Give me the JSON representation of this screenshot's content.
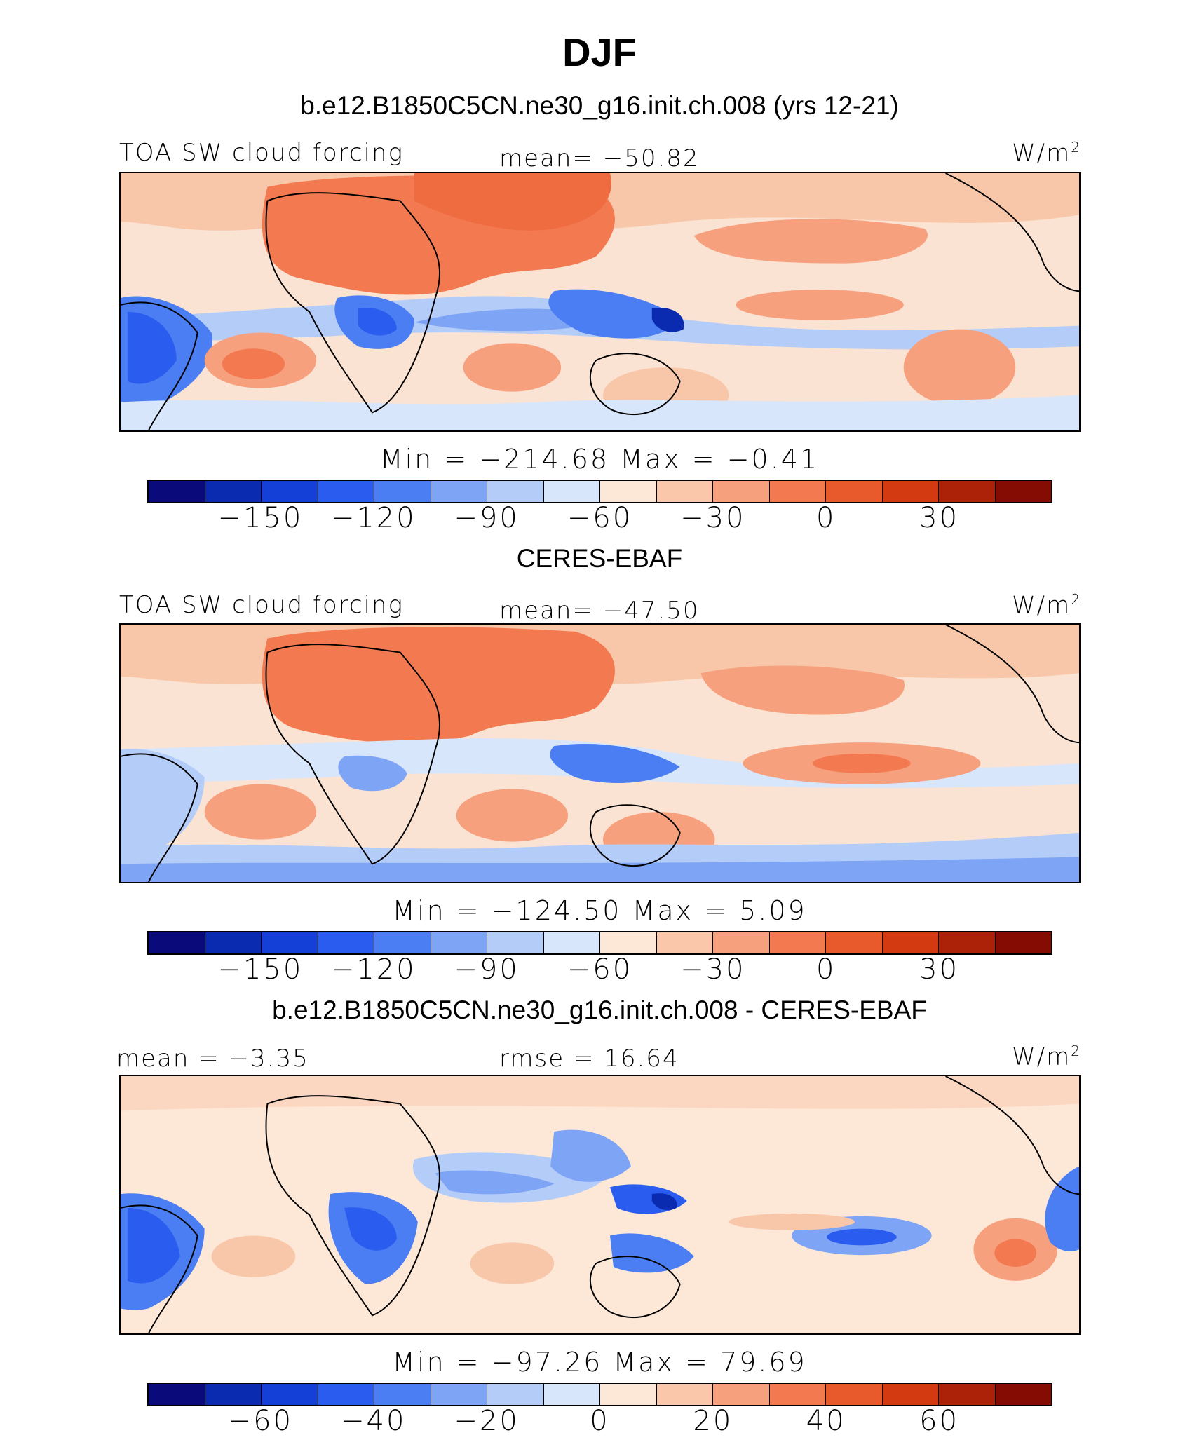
{
  "title": "DJF",
  "panels": [
    {
      "subtitle": "b.e12.B1850C5CN.ne30_g16.init.ch.008 (yrs 12-21)",
      "left_label": "TOA SW cloud forcing",
      "center_label": "mean= −50.82",
      "unit": "W/m",
      "unit_sup": "2",
      "minmax": "Min  =  −214.68  Max  =    −0.41",
      "ticks": [
        "−150",
        "−120",
        "−90",
        "−60",
        "−30",
        "0",
        "30"
      ]
    },
    {
      "subtitle": "CERES-EBAF",
      "left_label": "TOA SW cloud forcing",
      "center_label": "mean= −47.50",
      "unit": "W/m",
      "unit_sup": "2",
      "minmax": "Min  =  −124.50  Max  =     5.09",
      "ticks": [
        "−150",
        "−120",
        "−90",
        "−60",
        "−30",
        "0",
        "30"
      ]
    },
    {
      "subtitle": "b.e12.B1850C5CN.ne30_g16.init.ch.008 - CERES-EBAF",
      "left_label": "mean =   −3.35",
      "center_label": "rmse =   16.64",
      "unit": "W/m",
      "unit_sup": "2",
      "minmax": "Min  =  −97.26  Max  =   79.69",
      "ticks": [
        "−60",
        "−40",
        "−20",
        "0",
        "20",
        "40",
        "60"
      ]
    }
  ],
  "colorbar_colors": [
    "#0a0a7a",
    "#0a2bb0",
    "#1440d8",
    "#2a5cf0",
    "#4a7ef2",
    "#7ea4f5",
    "#b4ccf8",
    "#d8e6fb",
    "#fde8d8",
    "#fbc7ab",
    "#f7a07e",
    "#f37a50",
    "#e85a2c",
    "#d33a12",
    "#ac2208",
    "#850c02"
  ]
}
